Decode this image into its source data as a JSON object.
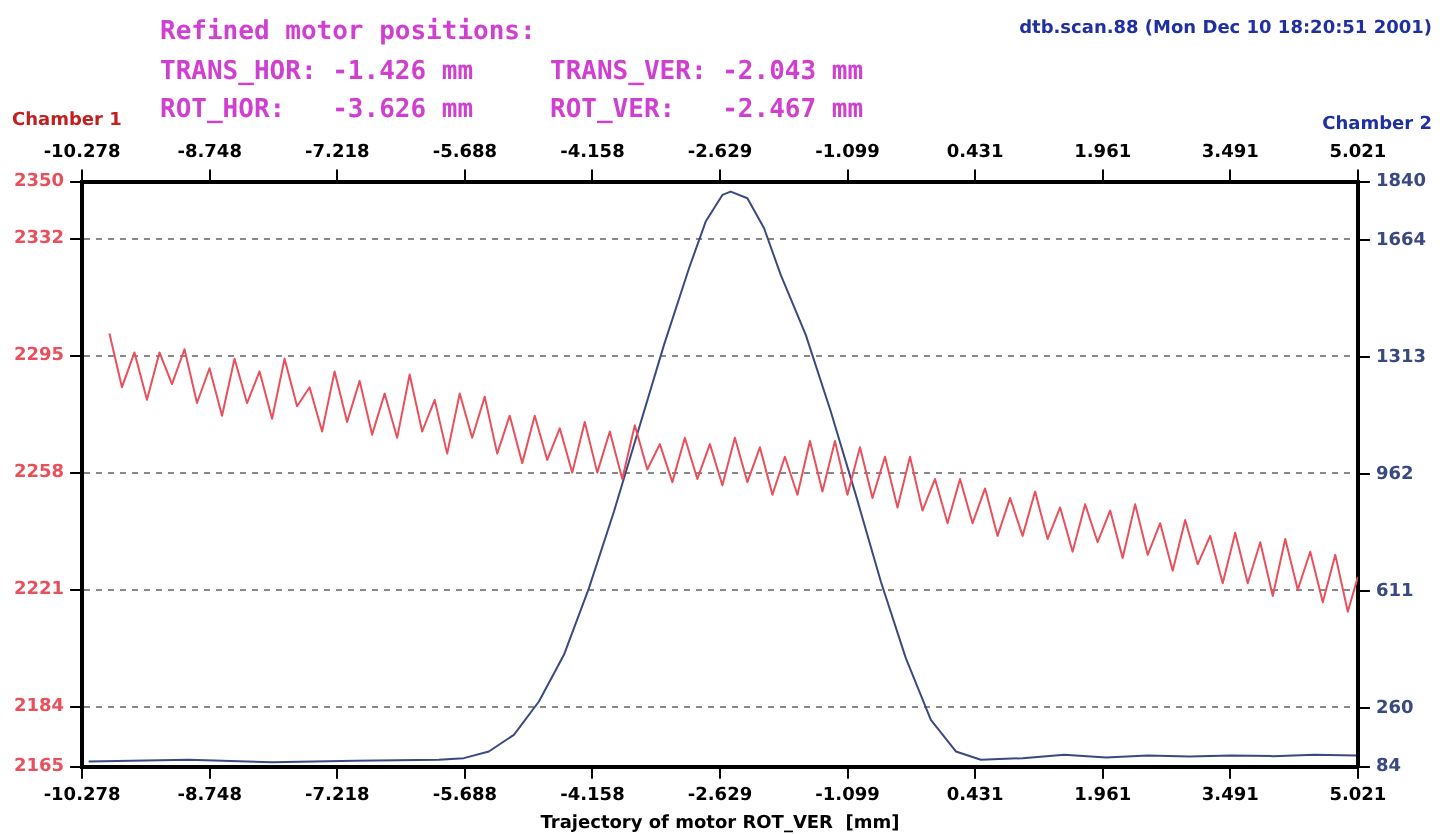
{
  "chart_data": {
    "type": "line",
    "title": "Refined motor positions:",
    "annotations": [
      "TRANS_HOR: -1.426 mm",
      "TRANS_VER: -2.043 mm",
      "ROT_HOR:   -3.626 mm",
      "ROT_VER:   -2.467 mm",
      "dtb.scan.88 (Mon Dec 10 18:20:51 2001)"
    ],
    "xlabel": "Trajectory of motor ROT_VER  [mm]",
    "ylabel": "Chamber 1",
    "y2label": "Chamber 2",
    "xlim": [
      -10.278,
      5.021
    ],
    "x2lim": [
      -10.278,
      5.021
    ],
    "xticks": [
      -10.278,
      -8.748,
      -7.218,
      -5.688,
      -4.158,
      -2.629,
      -1.099,
      0.431,
      1.961,
      3.491,
      5.021
    ],
    "x2ticks": [
      -10.278,
      -8.748,
      -7.218,
      -5.688,
      -4.158,
      -2.629,
      -1.099,
      0.431,
      1.961,
      3.491,
      5.021
    ],
    "ylim": [
      2165,
      2350
    ],
    "yticks": [
      2165,
      2184,
      2221,
      2258,
      2295,
      2332,
      2350
    ],
    "y2lim": [
      84,
      1840
    ],
    "y2ticks": [
      84,
      260,
      611,
      962,
      1313,
      1664,
      1840
    ],
    "grid": "y",
    "series": [
      {
        "color": "#e8505b",
        "x": [
          -9.95,
          -9.8,
          -9.65,
          -9.5,
          -9.35,
          -9.2,
          -9.05,
          -8.9,
          -8.75,
          -8.6,
          -8.45,
          -8.3,
          -8.15,
          -8.0,
          -7.85,
          -7.7,
          -7.55,
          -7.4,
          -7.25,
          -7.1,
          -6.95,
          -6.8,
          -6.65,
          -6.5,
          -6.35,
          -6.2,
          -6.05,
          -5.9,
          -5.75,
          -5.6,
          -5.45,
          -5.3,
          -5.15,
          -5.0,
          -4.85,
          -4.7,
          -4.55,
          -4.4,
          -4.25,
          -4.1,
          -3.95,
          -3.8,
          -3.65,
          -3.5,
          -3.35,
          -3.2,
          -3.05,
          -2.9,
          -2.75,
          -2.6,
          -2.45,
          -2.3,
          -2.15,
          -2.0,
          -1.85,
          -1.7,
          -1.55,
          -1.4,
          -1.25,
          -1.1,
          -0.95,
          -0.8,
          -0.65,
          -0.5,
          -0.35,
          -0.2,
          -0.05,
          0.1,
          0.25,
          0.4,
          0.55,
          0.7,
          0.85,
          1.0,
          1.15,
          1.3,
          1.45,
          1.6,
          1.75,
          1.9,
          2.05,
          2.2,
          2.35,
          2.5,
          2.65,
          2.8,
          2.95,
          3.1,
          3.25,
          3.4,
          3.55,
          3.7,
          3.85,
          4.0,
          4.15,
          4.3,
          4.45,
          4.6,
          4.75,
          4.9,
          5.02
        ],
        "values": [
          2302,
          2285,
          2296,
          2281,
          2296,
          2286,
          2297,
          2280,
          2291,
          2276,
          2294,
          2280,
          2290,
          2275,
          2294,
          2279,
          2285,
          2271,
          2290,
          2274,
          2287,
          2270,
          2283,
          2269,
          2289,
          2271,
          2281,
          2264,
          2283,
          2269,
          2282,
          2264,
          2276,
          2261,
          2276,
          2262,
          2272,
          2258,
          2274,
          2258,
          2271,
          2256,
          2273,
          2259,
          2267,
          2255,
          2269,
          2256,
          2267,
          2254,
          2269,
          2255,
          2266,
          2251,
          2263,
          2251,
          2268,
          2252,
          2268,
          2251,
          2266,
          2250,
          2263,
          2247,
          2263,
          2246,
          2256,
          2242,
          2256,
          2242,
          2253,
          2238,
          2250,
          2238,
          2252,
          2237,
          2247,
          2233,
          2248,
          2236,
          2246,
          2231,
          2248,
          2232,
          2242,
          2227,
          2243,
          2229,
          2238,
          2223,
          2239,
          2223,
          2236,
          2219,
          2237,
          2221,
          2233,
          2217,
          2232,
          2214,
          2225
        ]
      },
      {
        "color": "#3a4a80",
        "axis": "y2",
        "x": [
          -10.2,
          -9.0,
          -8.0,
          -7.0,
          -6.0,
          -5.7,
          -5.4,
          -5.1,
          -4.8,
          -4.5,
          -4.2,
          -3.9,
          -3.6,
          -3.3,
          -3.0,
          -2.8,
          -2.6,
          -2.5,
          -2.3,
          -2.1,
          -1.9,
          -1.6,
          -1.3,
          -1.0,
          -0.7,
          -0.4,
          -0.1,
          0.2,
          0.5,
          1.0,
          1.5,
          2.0,
          2.5,
          3.0,
          3.5,
          4.0,
          4.5,
          5.0
        ],
        "values": [
          100,
          105,
          98,
          102,
          105,
          110,
          130,
          180,
          280,
          420,
          620,
          850,
          1100,
          1350,
          1580,
          1720,
          1800,
          1810,
          1790,
          1700,
          1560,
          1380,
          1150,
          900,
          640,
          410,
          225,
          130,
          105,
          110,
          120,
          112,
          118,
          115,
          118,
          116,
          120,
          118
        ]
      }
    ]
  }
}
